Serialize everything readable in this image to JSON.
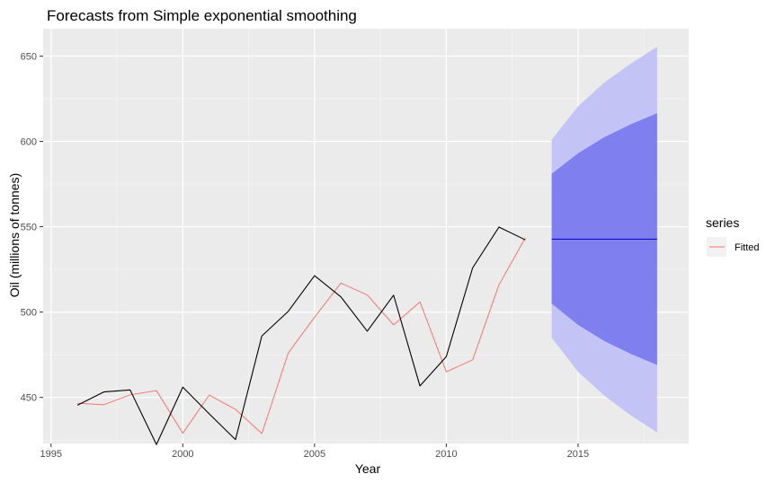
{
  "chart_data": {
    "type": "line",
    "title": "Forecasts from Simple exponential smoothing",
    "xlabel": "Year",
    "ylabel": "Oil (millions of tonnes)",
    "xlim": [
      1994.7,
      2019.2
    ],
    "ylim": [
      423,
      666
    ],
    "x_ticks": [
      1995,
      2000,
      2005,
      2010,
      2015
    ],
    "y_ticks": [
      450,
      500,
      550,
      600,
      650
    ],
    "grid": true,
    "background": "#ebebeb",
    "series": [
      {
        "name": "Oil",
        "color": "#000000",
        "x": [
          1996,
          1997,
          1998,
          1999,
          2000,
          2001,
          2002,
          2003,
          2004,
          2005,
          2006,
          2007,
          2008,
          2009,
          2010,
          2011,
          2012,
          2013
        ],
        "values": [
          445.4,
          453.2,
          454.4,
          422.4,
          456.0,
          440.4,
          425.3,
          486.0,
          500.4,
          521.3,
          508.9,
          488.8,
          509.9,
          456.7,
          473.9,
          525.9,
          549.8,
          542.3
        ]
      },
      {
        "name": "Fitted",
        "color": "#f8766d",
        "x": [
          1996,
          1997,
          1998,
          1999,
          2000,
          2001,
          2002,
          2003,
          2004,
          2005,
          2006,
          2007,
          2008,
          2009,
          2010,
          2011,
          2012,
          2013
        ],
        "values": [
          446.6,
          445.7,
          451.5,
          454.0,
          429.0,
          451.4,
          443.0,
          428.8,
          476.0,
          497.0,
          517.0,
          510.0,
          492.5,
          506.0,
          465.0,
          472.0,
          516.0,
          543.5
        ]
      }
    ],
    "forecast": {
      "x": [
        2014,
        2015,
        2016,
        2017,
        2018
      ],
      "point": [
        542.7,
        542.7,
        542.7,
        542.7,
        542.7
      ],
      "lo80": [
        505,
        492.5,
        483,
        475.5,
        469
      ],
      "hi80": [
        581,
        593,
        602.5,
        610,
        616.5
      ],
      "lo95": [
        485,
        465,
        451,
        439.5,
        429.5
      ],
      "hi95": [
        601,
        620.5,
        634.5,
        645.5,
        655.5
      ],
      "line_color": "#0000cc",
      "band80_color": "#7f7ff0",
      "band95_color": "#c3c3f5"
    },
    "legend": {
      "title": "series",
      "placement": "right",
      "entries": [
        {
          "label": "Fitted",
          "color": "#f8766d"
        }
      ]
    }
  }
}
